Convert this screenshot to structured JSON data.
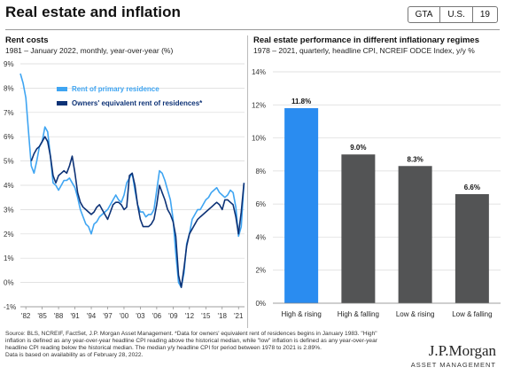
{
  "header": {
    "title": "Real estate and inflation",
    "tags": [
      "GTA",
      "U.S.",
      "19"
    ]
  },
  "left_panel": {
    "title": "Rent costs",
    "subtitle": "1981 – January 2022, monthly, year-over-year (%)"
  },
  "right_panel": {
    "title": "Real estate performance in different inflationary regimes",
    "subtitle": "1978 – 2021, quarterly, headline CPI, NCREIF ODCE Index, y/y %"
  },
  "colors": {
    "primary_rent": "#3fa5f2",
    "oer": "#0d3276",
    "high_rising_bar": "#2a8cf0",
    "other_bars": "#535455",
    "grid": "#d9d9d9"
  },
  "chart_data": [
    {
      "type": "line",
      "x_ticks": [
        "'82",
        "'85",
        "'88",
        "'91",
        "'94",
        "'97",
        "'00",
        "'03",
        "'06",
        "'09",
        "'12",
        "'15",
        "'18",
        "'21"
      ],
      "y_ticks": [
        "9%",
        "8%",
        "7%",
        "6%",
        "5%",
        "4%",
        "3%",
        "2%",
        "1%",
        "0%",
        "-1%"
      ],
      "ylim": [
        -1,
        9
      ],
      "xlim": [
        1981,
        2022.1
      ],
      "grid": true,
      "legend_position": "top-left",
      "series": [
        {
          "name": "Rent of primary residence",
          "x": [
            1981.0,
            1981.5,
            1982.0,
            1982.5,
            1983.0,
            1983.5,
            1984.0,
            1984.5,
            1985.0,
            1985.5,
            1986.0,
            1986.5,
            1987.0,
            1987.5,
            1988.0,
            1988.5,
            1989.0,
            1989.5,
            1990.0,
            1990.5,
            1991.0,
            1991.5,
            1992.0,
            1992.5,
            1993.0,
            1993.5,
            1994.0,
            1994.5,
            1995.0,
            1995.5,
            1996.0,
            1996.5,
            1997.0,
            1997.5,
            1998.0,
            1998.5,
            1999.0,
            1999.5,
            2000.0,
            2000.5,
            2001.0,
            2001.5,
            2002.0,
            2002.5,
            2003.0,
            2003.5,
            2004.0,
            2004.5,
            2005.0,
            2005.5,
            2006.0,
            2006.5,
            2007.0,
            2007.5,
            2008.0,
            2008.5,
            2009.0,
            2009.5,
            2010.0,
            2010.5,
            2011.0,
            2011.5,
            2012.0,
            2012.5,
            2013.0,
            2013.5,
            2014.0,
            2014.5,
            2015.0,
            2015.5,
            2016.0,
            2016.5,
            2017.0,
            2017.5,
            2018.0,
            2018.5,
            2019.0,
            2019.5,
            2020.0,
            2020.5,
            2021.0,
            2021.5,
            2022.0
          ],
          "values": [
            8.6,
            8.2,
            7.6,
            6.2,
            4.8,
            4.5,
            5.0,
            5.6,
            5.8,
            6.4,
            6.2,
            5.2,
            4.1,
            4.0,
            3.8,
            4.0,
            4.2,
            4.2,
            4.3,
            4.1,
            3.9,
            3.5,
            3.0,
            2.7,
            2.4,
            2.3,
            2.0,
            2.4,
            2.5,
            2.7,
            2.8,
            2.9,
            3.0,
            3.2,
            3.4,
            3.6,
            3.4,
            3.3,
            3.6,
            4.1,
            4.3,
            4.5,
            3.8,
            3.2,
            2.9,
            2.9,
            2.7,
            2.8,
            2.8,
            3.0,
            3.8,
            4.6,
            4.5,
            4.2,
            3.8,
            3.4,
            2.6,
            1.2,
            0.0,
            -0.2,
            0.4,
            1.6,
            2.0,
            2.6,
            2.8,
            3.0,
            3.0,
            3.2,
            3.4,
            3.5,
            3.7,
            3.8,
            3.9,
            3.7,
            3.6,
            3.5,
            3.6,
            3.8,
            3.7,
            3.1,
            1.9,
            2.3,
            4.1
          ]
        },
        {
          "name": "Owners' equivalent rent of residences*",
          "x": [
            1983.0,
            1983.5,
            1984.0,
            1984.5,
            1985.0,
            1985.5,
            1986.0,
            1986.5,
            1987.0,
            1987.5,
            1988.0,
            1988.5,
            1989.0,
            1989.5,
            1990.0,
            1990.5,
            1991.0,
            1991.5,
            1992.0,
            1992.5,
            1993.0,
            1993.5,
            1994.0,
            1994.5,
            1995.0,
            1995.5,
            1996.0,
            1996.5,
            1997.0,
            1997.5,
            1998.0,
            1998.5,
            1999.0,
            1999.5,
            2000.0,
            2000.5,
            2001.0,
            2001.5,
            2002.0,
            2002.5,
            2003.0,
            2003.5,
            2004.0,
            2004.5,
            2005.0,
            2005.5,
            2006.0,
            2006.5,
            2007.0,
            2007.5,
            2008.0,
            2008.5,
            2009.0,
            2009.5,
            2010.0,
            2010.5,
            2011.0,
            2011.5,
            2012.0,
            2012.5,
            2013.0,
            2013.5,
            2014.0,
            2014.5,
            2015.0,
            2015.5,
            2016.0,
            2016.5,
            2017.0,
            2017.5,
            2018.0,
            2018.5,
            2019.0,
            2019.5,
            2020.0,
            2020.5,
            2021.0,
            2021.5,
            2022.0
          ],
          "values": [
            5.0,
            5.3,
            5.5,
            5.6,
            5.8,
            6.0,
            5.8,
            5.2,
            4.4,
            4.1,
            4.4,
            4.5,
            4.6,
            4.5,
            4.8,
            5.2,
            4.5,
            3.7,
            3.3,
            3.1,
            3.0,
            2.9,
            2.8,
            2.9,
            3.1,
            3.2,
            3.0,
            2.8,
            2.6,
            2.9,
            3.2,
            3.3,
            3.3,
            3.2,
            3.0,
            3.1,
            4.4,
            4.5,
            4.0,
            3.2,
            2.6,
            2.3,
            2.3,
            2.3,
            2.4,
            2.6,
            3.2,
            4.0,
            3.7,
            3.4,
            3.0,
            2.8,
            2.5,
            1.9,
            0.3,
            -0.2,
            0.6,
            1.5,
            2.0,
            2.2,
            2.4,
            2.6,
            2.7,
            2.8,
            2.9,
            3.0,
            3.1,
            3.2,
            3.3,
            3.2,
            3.0,
            3.4,
            3.4,
            3.3,
            3.2,
            2.7,
            2.0,
            2.9,
            4.1
          ]
        }
      ]
    },
    {
      "type": "bar",
      "categories": [
        "High & rising",
        "High & falling",
        "Low & rising",
        "Low & falling"
      ],
      "values": [
        11.8,
        9.0,
        8.3,
        6.6
      ],
      "data_labels": [
        "11.8%",
        "9.0%",
        "8.3%",
        "6.6%"
      ],
      "y_ticks": [
        "14%",
        "12%",
        "10%",
        "8%",
        "6%",
        "4%",
        "2%",
        "0%"
      ],
      "ylim": [
        0,
        14
      ],
      "grid": true
    }
  ],
  "footnote": [
    "Source: BLS, NCREIF, FactSet, J.P. Morgan Asset Management. *Data for owners' equivalent rent of residences begins in January 1983. \"High\"",
    "inflation is defined as any year-over-year headline CPI reading above the historical median, while \"low\" inflation is defined as any year-over-year",
    "headline CPI reading below the historical median. The median y/y headline CPI for period between 1978 to 2021 is 2.89%.",
    "Data is based on availability as of February 28, 2022."
  ],
  "brand": {
    "name": "J.P.Morgan",
    "sub": "ASSET MANAGEMENT"
  }
}
